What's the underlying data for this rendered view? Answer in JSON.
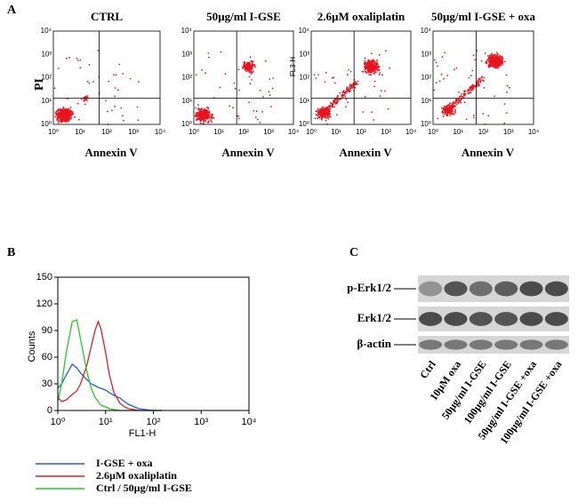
{
  "panel_a": {
    "label": "A",
    "ticks": [
      "10⁰",
      "10¹",
      "10²",
      "10³",
      "10⁴"
    ],
    "plots": [
      {
        "title": "CTRL",
        "y_label": "PI",
        "x_label": "Annexin V"
      },
      {
        "title": "50µg/ml I-GSE",
        "x_label": "Annexin V"
      },
      {
        "title": "2.6µM oxaliplatin",
        "y_label": "FL3-H",
        "x_label": "Annexin V"
      },
      {
        "title": "50µg/ml I-GSE + oxa",
        "x_label": "Annexin V"
      }
    ]
  },
  "chart_data": {
    "type": "line",
    "label": "B",
    "x_label": "FL1-H",
    "y_label": "Counts",
    "log_x": true,
    "x": [
      1,
      1.2,
      1.5,
      2,
      2.5,
      3,
      4,
      5,
      6,
      7,
      8,
      10,
      12,
      15,
      20,
      25,
      30,
      40,
      50,
      70,
      100,
      150
    ],
    "xlim": [
      1,
      10000
    ],
    "xticks": [
      {
        "value": 1,
        "label": "10⁰"
      },
      {
        "value": 10,
        "label": "10¹"
      },
      {
        "value": 100,
        "label": "10²"
      },
      {
        "value": 1000,
        "label": "10³"
      },
      {
        "value": 10000,
        "label": "10⁴"
      }
    ],
    "ylim": [
      0,
      150
    ],
    "yticks": [
      0,
      30,
      60,
      90,
      120,
      150
    ],
    "series": [
      {
        "name": "I-GSE + oxa",
        "color": "#1f5fd6",
        "values": [
          25,
          30,
          40,
          52,
          48,
          42,
          35,
          30,
          28,
          26,
          25,
          23,
          20,
          17,
          14,
          10,
          7,
          4,
          2,
          1,
          0,
          0
        ]
      },
      {
        "name": "2.6µM oxaliplatin",
        "color": "#e02020",
        "values": [
          15,
          10,
          12,
          18,
          22,
          30,
          50,
          72,
          90,
          100,
          92,
          65,
          40,
          20,
          8,
          4,
          2,
          1,
          0,
          0,
          0,
          0
        ]
      },
      {
        "name": "Ctrl / 50µg/ml I-GSE",
        "color": "#22cc22",
        "values": [
          10,
          30,
          65,
          100,
          102,
          80,
          45,
          25,
          15,
          10,
          6,
          4,
          2,
          1,
          0,
          0,
          0,
          0,
          0,
          0,
          0,
          0
        ]
      }
    ]
  },
  "panel_c": {
    "label": "C",
    "rows": [
      "p-Erk1/2",
      "Erk1/2",
      "β-actin"
    ],
    "lanes": [
      "Ctrl",
      "10µM oxa",
      "50µg/ml I-GSE",
      "100µg/ml I-GSE",
      "50µg/ml I-GSE +oxa",
      "100µg/ml I-GSE +oxa"
    ]
  }
}
